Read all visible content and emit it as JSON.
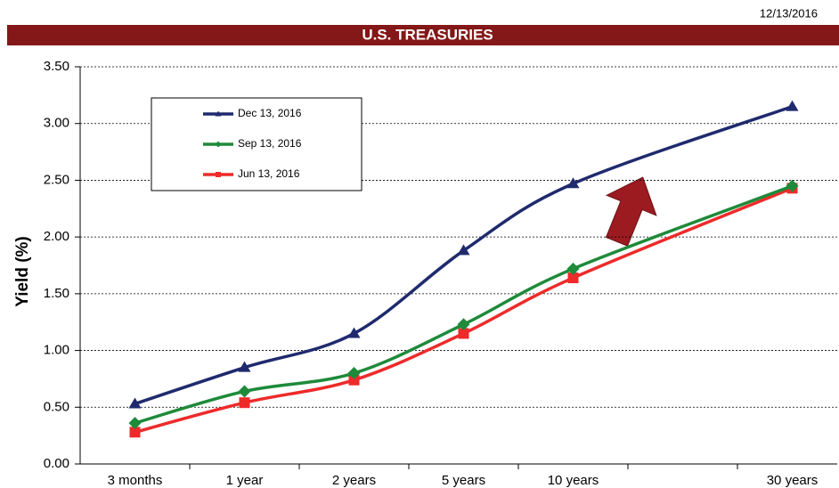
{
  "date": "12/13/2016",
  "chart_data": {
    "type": "line",
    "title": "U.S. TREASURIES",
    "y_label": "Yield (%)",
    "categories": [
      "3 months",
      "1 year",
      "2 years",
      "5 years",
      "10 years",
      "30 years"
    ],
    "series": [
      {
        "name": "Dec 13, 2016",
        "color": "#1f2a6e",
        "marker": "triangle",
        "values": [
          0.53,
          0.85,
          1.15,
          1.88,
          2.47,
          3.15
        ]
      },
      {
        "name": "Sep 13, 2016",
        "color": "#1e8a3a",
        "marker": "diamond",
        "values": [
          0.36,
          0.64,
          0.8,
          1.23,
          1.72,
          2.45
        ]
      },
      {
        "name": "Jun 13, 2016",
        "color": "#ee2a2a",
        "marker": "square",
        "values": [
          0.28,
          0.54,
          0.74,
          1.15,
          1.64,
          2.43
        ]
      }
    ],
    "ylim": [
      0,
      3.5
    ],
    "yticks": [
      {
        "value": 0,
        "label": "0.00"
      },
      {
        "value": 0.5,
        "label": "0.50"
      },
      {
        "value": 1,
        "label": "1.00"
      },
      {
        "value": 1.5,
        "label": "1.50"
      },
      {
        "value": 2,
        "label": "2.00"
      },
      {
        "value": 2.5,
        "label": "2.50"
      },
      {
        "value": 3,
        "label": "3.00"
      },
      {
        "value": 3.5,
        "label": "3.50"
      }
    ],
    "grid": true,
    "legend": "upper left"
  }
}
